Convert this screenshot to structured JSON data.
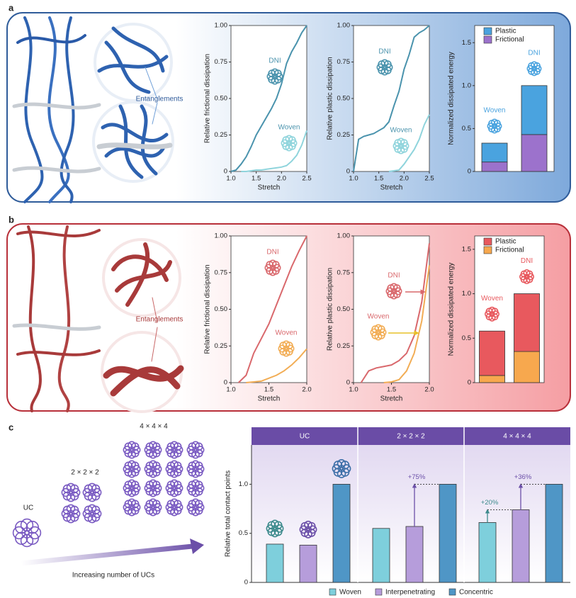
{
  "figure": {
    "panel_labels": [
      "a",
      "b",
      "c"
    ],
    "callouts": [
      "Entanglements",
      "Entanglements"
    ],
    "unit_cells": [
      "UC",
      "2 × 2 × 2",
      "4 × 4 × 4"
    ],
    "arrow_label": "Increasing number of UCs"
  },
  "chart_data": [
    {
      "type": "line",
      "x_label": "Stretch",
      "y_label": "Relative frictional dissipation",
      "x": [
        1.0,
        1.1,
        1.2,
        1.3,
        1.4,
        1.5,
        1.6,
        1.7,
        1.8,
        1.9,
        2.0,
        2.1,
        2.2,
        2.3,
        2.4,
        2.5
      ],
      "series": [
        {
          "name": "DNI",
          "color": "#4a93ad",
          "values": [
            0,
            0.01,
            0.05,
            0.1,
            0.17,
            0.25,
            0.31,
            0.37,
            0.43,
            0.5,
            0.6,
            0.74,
            0.82,
            0.88,
            0.95,
            1.0
          ]
        },
        {
          "name": "Woven",
          "color": "#8fd4dc",
          "values": [
            null,
            null,
            0,
            0,
            0.005,
            0.01,
            0.01,
            0.015,
            0.02,
            0.025,
            0.03,
            0.04,
            0.07,
            0.11,
            0.18,
            0.28
          ]
        }
      ],
      "xlim": [
        1,
        2.5
      ],
      "xticks": [
        {
          "value": 1,
          "label": "1.0"
        },
        1.5,
        {
          "value": 2,
          "label": "2.0"
        },
        2.5
      ],
      "ylim": [
        0,
        1
      ],
      "yticks": [
        0,
        0.25,
        {
          "value": 0.5,
          "label": "0.50"
        },
        0.75,
        {
          "value": 1,
          "label": "1.00"
        }
      ]
    },
    {
      "type": "line",
      "x_label": "Stretch",
      "y_label": "Relative plastic dissipation",
      "x": [
        1.0,
        1.1,
        1.2,
        1.3,
        1.4,
        1.5,
        1.6,
        1.7,
        1.8,
        1.9,
        2.0,
        2.1,
        2.2,
        2.3,
        2.4,
        2.5
      ],
      "series": [
        {
          "name": "DNI",
          "color": "#4a93ad",
          "values": [
            0,
            0.22,
            0.24,
            0.25,
            0.26,
            0.28,
            0.3,
            0.34,
            0.45,
            0.55,
            0.7,
            0.8,
            0.92,
            0.95,
            0.97,
            1.0
          ]
        },
        {
          "name": "Woven",
          "color": "#8fd4dc",
          "values": [
            null,
            null,
            null,
            null,
            null,
            null,
            null,
            0,
            0.005,
            0.01,
            0.05,
            0.1,
            0.15,
            0.22,
            0.32,
            0.39
          ]
        }
      ],
      "xlim": [
        1,
        2.5
      ],
      "xticks": [
        {
          "value": 1,
          "label": "1.0"
        },
        1.5,
        {
          "value": 2,
          "label": "2.0"
        },
        2.5
      ],
      "ylim": [
        0,
        1
      ],
      "yticks": [
        0,
        0.25,
        {
          "value": 0.5,
          "label": "0.50"
        },
        0.75,
        {
          "value": 1,
          "label": "1.00"
        }
      ]
    },
    {
      "type": "stacked_bar",
      "y_label": "Normalized dissipated energy",
      "categories": [
        "Woven",
        "DNI"
      ],
      "series": [
        {
          "name": "Plastic",
          "color": "#4aa3df",
          "values": [
            0.22,
            0.57
          ]
        },
        {
          "name": "Frictional",
          "color": "#9c72cc",
          "values": [
            0.11,
            0.43
          ]
        }
      ],
      "ylim": [
        0,
        1.7
      ],
      "yticks": [
        0,
        0.5,
        {
          "value": 1,
          "label": "1.0"
        },
        1.5
      ],
      "legend": "upper left"
    },
    {
      "type": "line",
      "x_label": "Stretch",
      "y_label": "Relative frictional dissipation",
      "x": [
        1.0,
        1.1,
        1.2,
        1.3,
        1.4,
        1.5,
        1.6,
        1.7,
        1.8,
        1.9,
        2.0
      ],
      "series": [
        {
          "name": "DNI",
          "color": "#d9686c",
          "values": [
            null,
            0,
            0.05,
            0.2,
            0.3,
            0.4,
            0.53,
            0.66,
            0.79,
            0.9,
            1.0
          ]
        },
        {
          "name": "Woven",
          "color": "#f2ad55",
          "values": [
            null,
            null,
            0,
            0.005,
            0.01,
            0.03,
            0.05,
            0.08,
            0.12,
            0.17,
            0.23
          ]
        }
      ],
      "xlim": [
        1,
        2
      ],
      "xticks": [
        {
          "value": 1,
          "label": "1.0"
        },
        1.5,
        {
          "value": 2,
          "label": "2.0"
        }
      ],
      "ylim": [
        0,
        1
      ],
      "yticks": [
        0,
        0.25,
        {
          "value": 0.5,
          "label": "0.50"
        },
        0.75,
        {
          "value": 1,
          "label": "1.00"
        }
      ]
    },
    {
      "type": "line",
      "x_label": "Stretch",
      "y_label": "Relative plastic dissipation",
      "x": [
        1.0,
        1.1,
        1.2,
        1.3,
        1.4,
        1.5,
        1.6,
        1.7,
        1.8,
        1.9,
        2.0
      ],
      "series": [
        {
          "name": "DNI",
          "color": "#d9686c",
          "values": [
            null,
            0,
            0.08,
            0.1,
            0.11,
            0.12,
            0.15,
            0.2,
            0.32,
            0.55,
            0.95
          ]
        },
        {
          "name": "Woven",
          "color": "#f2ad55",
          "values": [
            null,
            null,
            null,
            null,
            0,
            0.005,
            0.02,
            0.08,
            0.2,
            0.42,
            0.8
          ]
        }
      ],
      "xlim": [
        1,
        2
      ],
      "xticks": [
        {
          "value": 1,
          "label": "1.0"
        },
        1.5,
        {
          "value": 2,
          "label": "2.0"
        }
      ],
      "ylim": [
        0,
        1
      ],
      "yticks": [
        0,
        0.25,
        {
          "value": 0.5,
          "label": "0.50"
        },
        0.75,
        {
          "value": 1,
          "label": "1.00"
        }
      ]
    },
    {
      "type": "stacked_bar",
      "y_label": "Normalized dissipated energy",
      "categories": [
        "Woven",
        "DNI"
      ],
      "series": [
        {
          "name": "Plastic",
          "color": "#e8595e",
          "values": [
            0.5,
            0.65
          ]
        },
        {
          "name": "Frictional",
          "color": "#f7a84e",
          "values": [
            0.08,
            0.35
          ]
        }
      ],
      "ylim": [
        0,
        1.65
      ],
      "yticks": [
        0,
        0.5,
        {
          "value": 1,
          "label": "1.0"
        },
        1.5
      ],
      "legend": "upper left"
    },
    {
      "type": "grouped_bar",
      "y_label": "Relative total contact points",
      "categories": [
        "UC",
        "2 × 2 × 2",
        "4 × 4 × 4"
      ],
      "series": [
        {
          "name": "Woven",
          "color": "#7ecfdc",
          "values": [
            0.39,
            0.55,
            0.61
          ]
        },
        {
          "name": "Interpenetrating",
          "color": "#b69ddb",
          "values": [
            0.38,
            0.57,
            0.74
          ]
        },
        {
          "name": "Concentric",
          "color": "#4f96c6",
          "values": [
            1.0,
            1.0,
            1.0
          ]
        }
      ],
      "ylim": [
        0,
        1.4
      ],
      "yticks": [
        0,
        0.5,
        {
          "value": 1,
          "label": "1.0"
        }
      ],
      "annotations": [
        "+75%",
        "+20%",
        "+36%"
      ],
      "legend": "bottom"
    }
  ]
}
